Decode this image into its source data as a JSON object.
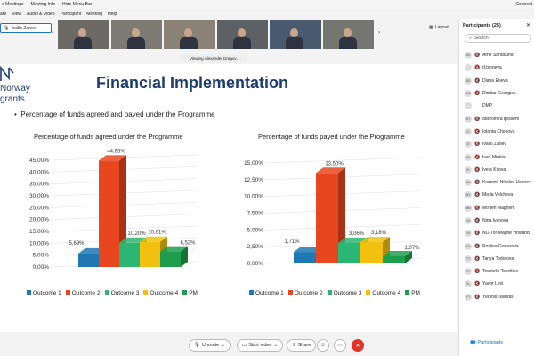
{
  "topbar": {
    "items": [
      "e Meetings",
      "Meeting Info",
      "Hide Menu Bar"
    ],
    "right_label": "Connect"
  },
  "menubar": {
    "items": [
      "are",
      "View",
      "Audio & Video",
      "Participant",
      "Meeting",
      "Help"
    ]
  },
  "active_speaker": {
    "name": "Ivailo Zanev"
  },
  "layout_label": "Layout",
  "viewing_label": "Viewing Alexander Dragov...",
  "slide": {
    "logo_lines": [
      "Norway",
      "grants"
    ],
    "title": "Financial Implementation",
    "bullet": "Percentage of funds agreed and payed under the Programme"
  },
  "colors": {
    "outcome1": "#1f77b4",
    "outcome2": "#e8461e",
    "outcome3": "#2bb673",
    "outcome4": "#f2c10f",
    "pm": "#1e9e4d",
    "title": "#1d3b6e",
    "end_call": "#e0332a"
  },
  "chart_data": [
    {
      "type": "bar",
      "title": "Percentage of funds agreed under the Programme",
      "categories": [
        "Outcome 1",
        "Outcome 2",
        "Outcome 3",
        "Outcome 4",
        "PM"
      ],
      "values": [
        5.69,
        44.85,
        10.2,
        10.61,
        6.52
      ],
      "value_labels": [
        "5,69%",
        "44,85%",
        "10,20%",
        "10,61%",
        "6,52%"
      ],
      "yticks": [
        "0,00%",
        "5,00%",
        "10,00%",
        "15,00%",
        "20,00%",
        "25,00%",
        "30,00%",
        "35,00%",
        "40,00%",
        "45,00%"
      ],
      "ylim": [
        0,
        45
      ],
      "legend": [
        "Outcome 1",
        "Outcome 2",
        "Outcome 3",
        "Outcome 4",
        "PM"
      ],
      "legend_position": "bottom"
    },
    {
      "type": "bar",
      "title": "Percentage of funds payed under the Programme",
      "categories": [
        "Outcome 1",
        "Outcome 2",
        "Outcome 3",
        "Outcome 4",
        "PM"
      ],
      "values": [
        1.71,
        13.5,
        3.06,
        3.18,
        1.07
      ],
      "value_labels": [
        "1,71%",
        "13,50%",
        "3,06%",
        "3,18%",
        "1,07%"
      ],
      "yticks": [
        "0,00%",
        "2,50%",
        "5,00%",
        "7,50%",
        "10,00%",
        "12,50%",
        "15,00%"
      ],
      "ylim": [
        0,
        15
      ],
      "legend": [
        "Outcome 1",
        "Outcome 2",
        "Outcome 3",
        "Outcome 4",
        "PM"
      ],
      "legend_position": "bottom"
    }
  ],
  "controls": {
    "unmute": "Unmute",
    "start_video": "Start video",
    "share": "Share",
    "participants": "Participants"
  },
  "panel": {
    "title": "Participants (25)",
    "search_placeholder": "Search",
    "participants": [
      {
        "initials": "AS",
        "name": "Arne Sandsund"
      },
      {
        "initials": "",
        "name": "d.tsoneva"
      },
      {
        "initials": "DE",
        "name": "Diana Eneva"
      },
      {
        "initials": "DG",
        "name": "Dimitar Georgiev"
      },
      {
        "initials": "",
        "name": "DMP"
      },
      {
        "initials": "DT",
        "name": "dobromira tjessem"
      },
      {
        "initials": "IC",
        "name": "Iolanta Chopova"
      },
      {
        "initials": "IZ",
        "name": "Ivailo Zanev"
      },
      {
        "initials": "IM",
        "name": "Ivan Minkov"
      },
      {
        "initials": "IK",
        "name": "Iveta Kitova"
      },
      {
        "initials": "KU",
        "name": "Krasimir Nikolov Ushnev"
      },
      {
        "initials": "MV",
        "name": "Maria Velcheva"
      },
      {
        "initials": "MM",
        "name": "Morten Magnem"
      },
      {
        "initials": "NI",
        "name": "Nina Ivanova"
      },
      {
        "initials": "NI",
        "name": "NO-Tor-Magne Hovland"
      },
      {
        "initials": "RG",
        "name": "Rositsa Gavazova"
      },
      {
        "initials": "TT",
        "name": "Tanya Todorova"
      },
      {
        "initials": "TT",
        "name": "Tsvetelin Tsvetkov"
      },
      {
        "initials": "YL",
        "name": "Yavor Levi"
      },
      {
        "initials": "YT",
        "name": "Yiannis Tavridis"
      }
    ]
  }
}
